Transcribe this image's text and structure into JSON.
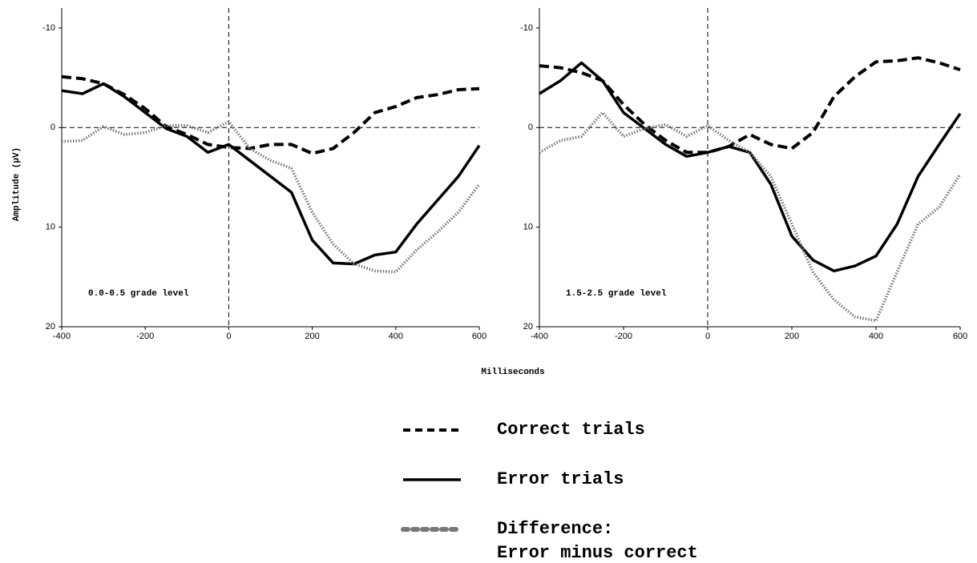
{
  "chart_data": [
    {
      "type": "line",
      "annotation": "0.0-0.5 grade level",
      "xlabel": "Milliseconds",
      "ylabel": "Amplitude (µV)",
      "x": [
        -400,
        -350,
        -300,
        -250,
        -200,
        -150,
        -100,
        -50,
        0,
        50,
        100,
        150,
        200,
        250,
        300,
        350,
        400,
        450,
        500,
        550,
        600
      ],
      "xlim": [
        -400,
        600
      ],
      "xticks": [
        -400,
        -200,
        0,
        200,
        400,
        600
      ],
      "ylim": [
        -12,
        20
      ],
      "yticks": [
        -10,
        0,
        10,
        20
      ],
      "invert_y": true,
      "zero_lines": true,
      "series": [
        {
          "name": "Correct trials",
          "color": "#000000",
          "style": "dashed",
          "values": [
            -5.1,
            -4.9,
            -4.4,
            -3.3,
            -1.9,
            -0.1,
            0.7,
            1.7,
            2.0,
            2.1,
            1.7,
            1.7,
            2.6,
            2.1,
            0.5,
            -1.5,
            -2.1,
            -3.0,
            -3.3,
            -3.8,
            -3.9
          ]
        },
        {
          "name": "Error trials",
          "color": "#000000",
          "style": "solid",
          "values": [
            -3.7,
            -3.4,
            -4.4,
            -3.1,
            -1.5,
            0.1,
            0.9,
            2.5,
            1.7,
            3.3,
            4.9,
            6.5,
            11.3,
            13.6,
            13.7,
            12.8,
            12.5,
            9.7,
            7.3,
            4.9,
            1.8
          ]
        },
        {
          "name": "Difference:\nError minus correct",
          "color": "#777777",
          "style": "dotted",
          "values": [
            1.4,
            1.3,
            -0.1,
            0.7,
            0.5,
            -0.2,
            -0.2,
            0.5,
            -0.6,
            2.1,
            3.3,
            4.1,
            8.5,
            11.7,
            13.7,
            14.4,
            14.5,
            12.3,
            10.5,
            8.5,
            5.7
          ]
        }
      ]
    },
    {
      "type": "line",
      "annotation": "1.5-2.5 grade level",
      "x": [
        -400,
        -350,
        -300,
        -250,
        -200,
        -150,
        -100,
        -50,
        0,
        50,
        100,
        150,
        200,
        250,
        300,
        350,
        400,
        450,
        500,
        550,
        600
      ],
      "xlim": [
        -400,
        600
      ],
      "xticks": [
        -400,
        -200,
        0,
        200,
        400,
        600
      ],
      "ylim": [
        -12,
        20
      ],
      "yticks": [
        -10,
        0,
        10,
        20
      ],
      "invert_y": true,
      "zero_lines": true,
      "series": [
        {
          "name": "Correct trials",
          "color": "#000000",
          "style": "dashed",
          "values": [
            -6.2,
            -6.0,
            -5.5,
            -4.7,
            -2.3,
            -0.3,
            1.3,
            2.5,
            2.5,
            1.9,
            0.7,
            1.7,
            2.1,
            0.5,
            -3.1,
            -5.1,
            -6.6,
            -6.7,
            -7.0,
            -6.5,
            -5.8
          ]
        },
        {
          "name": "Error trials",
          "color": "#000000",
          "style": "solid",
          "values": [
            -3.4,
            -4.7,
            -6.5,
            -4.7,
            -1.5,
            0.1,
            1.7,
            2.9,
            2.5,
            1.9,
            2.5,
            5.7,
            10.9,
            13.3,
            14.4,
            13.9,
            12.9,
            9.7,
            4.9,
            1.7,
            -1.4
          ]
        },
        {
          "name": "Difference:\nError minus correct",
          "color": "#777777",
          "style": "dotted",
          "values": [
            2.5,
            1.3,
            0.9,
            -1.5,
            0.9,
            0.1,
            -0.3,
            0.9,
            -0.2,
            1.3,
            2.5,
            4.9,
            9.7,
            14.5,
            17.3,
            19.0,
            19.4,
            14.5,
            9.7,
            8.0,
            4.7
          ]
        }
      ]
    }
  ]
}
